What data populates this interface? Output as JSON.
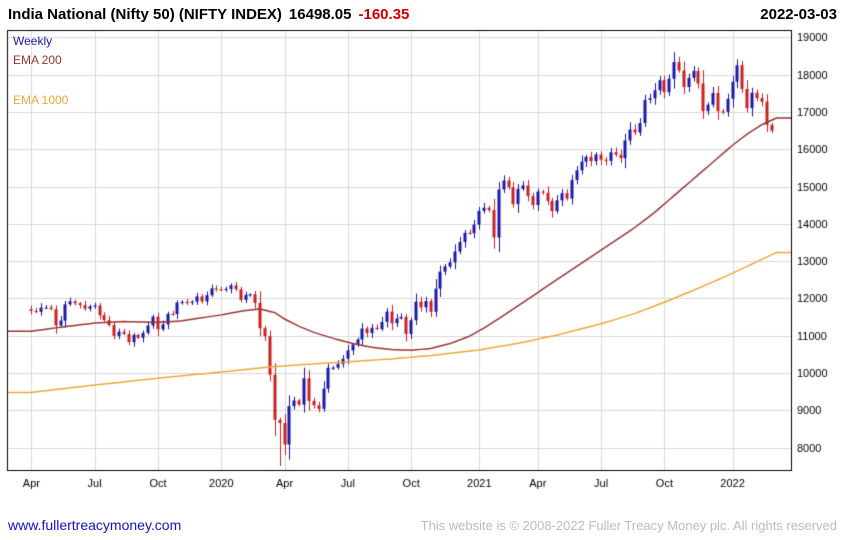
{
  "header": {
    "title": "India National (Nifty 50) (NIFTY INDEX)",
    "last_price": "16498.05",
    "change": "-160.35",
    "change_color": "#cc0000",
    "date": "2022-03-03"
  },
  "legend": {
    "items": [
      {
        "label": "Weekly",
        "color": "#1a1aa8"
      },
      {
        "label": "EMA 200",
        "color": "#993333"
      },
      {
        "label": "EMA 1000",
        "color": "#eda83a"
      }
    ]
  },
  "footer": {
    "website": "www.fullertreacymoney.com",
    "link_color": "#1512c8",
    "copyright": "This website is © 2008-2022 Fuller Treacy Money plc. All rights reserved"
  },
  "chart_data": {
    "type": "candlestick",
    "instrument": "India National (Nifty 50) (NIFTY INDEX)",
    "timeframe": "Weekly",
    "last_price": 16498.05,
    "change": -160.35,
    "series_start": "2019-04-05",
    "x_axis": {
      "min": -5,
      "max": 156,
      "ticks": [
        {
          "label": "Apr",
          "week": 0
        },
        {
          "label": "Jul",
          "week": 13
        },
        {
          "label": "Oct",
          "week": 26
        },
        {
          "label": "2020",
          "week": 39
        },
        {
          "label": "Apr",
          "week": 52
        },
        {
          "label": "Jul",
          "week": 65
        },
        {
          "label": "Oct",
          "week": 78
        },
        {
          "label": "2021",
          "week": 92
        },
        {
          "label": "Apr",
          "week": 104
        },
        {
          "label": "Jul",
          "week": 117
        },
        {
          "label": "Oct",
          "week": 130
        },
        {
          "label": "2022",
          "week": 144
        }
      ]
    },
    "y_axis": {
      "min": 7400,
      "max": 19200,
      "ticks": [
        8000,
        9000,
        10000,
        11000,
        12000,
        13000,
        14000,
        15000,
        16000,
        17000,
        18000,
        19000
      ]
    },
    "weekly_closes": [
      11666,
      11643,
      11753,
      11754,
      11712,
      11279,
      11407,
      11844,
      11923,
      11871,
      11823,
      11724,
      11789,
      11811,
      11553,
      11419,
      11284,
      10997,
      11110,
      11048,
      10829,
      11023,
      10946,
      11076,
      11274,
      11512,
      11174,
      11305,
      11586,
      11584,
      11890,
      11908,
      11895,
      11914,
      12056,
      11922,
      12087,
      12272,
      12246,
      12227,
      12257,
      12352,
      12248,
      11962,
      12098,
      12113,
      11882,
      11202,
      10989,
      9955,
      8745,
      8660,
      8084,
      9112,
      9267,
      9154,
      9860,
      9252,
      9137,
      9039,
      9580,
      10142,
      10144,
      10244,
      10383,
      10607,
      10768,
      10902,
      11194,
      11074,
      11214,
      11178,
      11372,
      11648,
      11334,
      11464,
      11505,
      11050,
      11417,
      11914,
      11762,
      11930,
      11642,
      12263,
      12720,
      12859,
      12969,
      13259,
      13514,
      13761,
      13749,
      13982,
      14347,
      14433,
      14372,
      13635,
      14924,
      15163,
      14982,
      14529,
      14938,
      15031,
      14744,
      14507,
      14867,
      14835,
      14617,
      14341,
      14631,
      14823,
      14678,
      15175,
      15436,
      15670,
      15799,
      15683,
      15860,
      15722,
      15690,
      15923,
      15856,
      15763,
      16238,
      16529,
      16450,
      16705,
      17324,
      17369,
      17585,
      17853,
      17532,
      17895,
      18339,
      18115,
      17672,
      17917,
      18103,
      17765,
      17026,
      17197,
      17511,
      17021,
      17004,
      17354,
      17813,
      18255,
      17617,
      17102,
      17516,
      17375,
      17276,
      16658,
      16498
    ],
    "low_overrides": [
      [
        51,
        7511
      ],
      [
        52,
        7800
      ]
    ],
    "high_overrides": [
      [
        132,
        18604
      ]
    ],
    "overlays": [
      {
        "name": "EMA 200",
        "color": "#993333",
        "anchors": [
          [
            0,
            11120
          ],
          [
            6,
            11230
          ],
          [
            13,
            11340
          ],
          [
            19,
            11380
          ],
          [
            26,
            11360
          ],
          [
            31,
            11400
          ],
          [
            35,
            11480
          ],
          [
            39,
            11560
          ],
          [
            44,
            11680
          ],
          [
            47,
            11720
          ],
          [
            50,
            11620
          ],
          [
            52,
            11450
          ],
          [
            55,
            11250
          ],
          [
            58,
            11090
          ],
          [
            62,
            10930
          ],
          [
            66,
            10790
          ],
          [
            70,
            10690
          ],
          [
            74,
            10630
          ],
          [
            78,
            10610
          ],
          [
            82,
            10660
          ],
          [
            86,
            10790
          ],
          [
            90,
            10990
          ],
          [
            93,
            11210
          ],
          [
            96,
            11460
          ],
          [
            100,
            11810
          ],
          [
            104,
            12160
          ],
          [
            108,
            12510
          ],
          [
            112,
            12860
          ],
          [
            116,
            13210
          ],
          [
            120,
            13560
          ],
          [
            124,
            13910
          ],
          [
            128,
            14310
          ],
          [
            132,
            14760
          ],
          [
            136,
            15210
          ],
          [
            140,
            15660
          ],
          [
            144,
            16110
          ],
          [
            147,
            16410
          ],
          [
            150,
            16660
          ],
          [
            153,
            16840
          ]
        ]
      },
      {
        "name": "EMA 1000",
        "color": "#eda83a",
        "anchors": [
          [
            0,
            9480
          ],
          [
            13,
            9680
          ],
          [
            26,
            9860
          ],
          [
            39,
            10030
          ],
          [
            48,
            10150
          ],
          [
            56,
            10230
          ],
          [
            65,
            10300
          ],
          [
            74,
            10380
          ],
          [
            82,
            10470
          ],
          [
            92,
            10620
          ],
          [
            100,
            10800
          ],
          [
            108,
            11020
          ],
          [
            117,
            11320
          ],
          [
            124,
            11600
          ],
          [
            130,
            11900
          ],
          [
            136,
            12220
          ],
          [
            142,
            12560
          ],
          [
            147,
            12860
          ],
          [
            150,
            13050
          ],
          [
            153,
            13230
          ]
        ]
      }
    ],
    "colors": {
      "up": "#1a1aa8",
      "down": "#cc2020",
      "grid": "#d9d9d9",
      "border": "#000000",
      "tick_text": "#000000"
    }
  }
}
